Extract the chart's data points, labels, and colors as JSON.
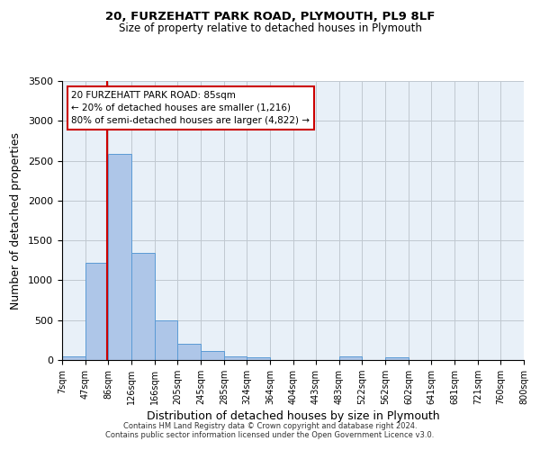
{
  "title1": "20, FURZEHATT PARK ROAD, PLYMOUTH, PL9 8LF",
  "title2": "Size of property relative to detached houses in Plymouth",
  "xlabel": "Distribution of detached houses by size in Plymouth",
  "ylabel": "Number of detached properties",
  "bin_labels": [
    "7sqm",
    "47sqm",
    "86sqm",
    "126sqm",
    "166sqm",
    "205sqm",
    "245sqm",
    "285sqm",
    "324sqm",
    "364sqm",
    "404sqm",
    "443sqm",
    "483sqm",
    "522sqm",
    "562sqm",
    "602sqm",
    "641sqm",
    "681sqm",
    "721sqm",
    "760sqm",
    "800sqm"
  ],
  "bin_edges": [
    7,
    47,
    86,
    126,
    166,
    205,
    245,
    285,
    324,
    364,
    404,
    443,
    483,
    522,
    562,
    602,
    641,
    681,
    721,
    760,
    800
  ],
  "bar_heights": [
    50,
    1220,
    2580,
    1340,
    500,
    200,
    110,
    50,
    30,
    0,
    0,
    0,
    40,
    0,
    30,
    0,
    0,
    0,
    0,
    0
  ],
  "bar_color": "#aec6e8",
  "bar_edge_color": "#5b9bd5",
  "property_size": 85,
  "pct_smaller": 20,
  "n_smaller": 1216,
  "pct_larger": 80,
  "n_larger": 4822,
  "vline_color": "#cc0000",
  "annotation_box_edge_color": "#cc0000",
  "ylim": [
    0,
    3500
  ],
  "yticks": [
    0,
    500,
    1000,
    1500,
    2000,
    2500,
    3000,
    3500
  ],
  "background_color": "#ffffff",
  "plot_bg_color": "#e8f0f8",
  "grid_color": "#c0c8d0",
  "footer1": "Contains HM Land Registry data © Crown copyright and database right 2024.",
  "footer2": "Contains public sector information licensed under the Open Government Licence v3.0."
}
